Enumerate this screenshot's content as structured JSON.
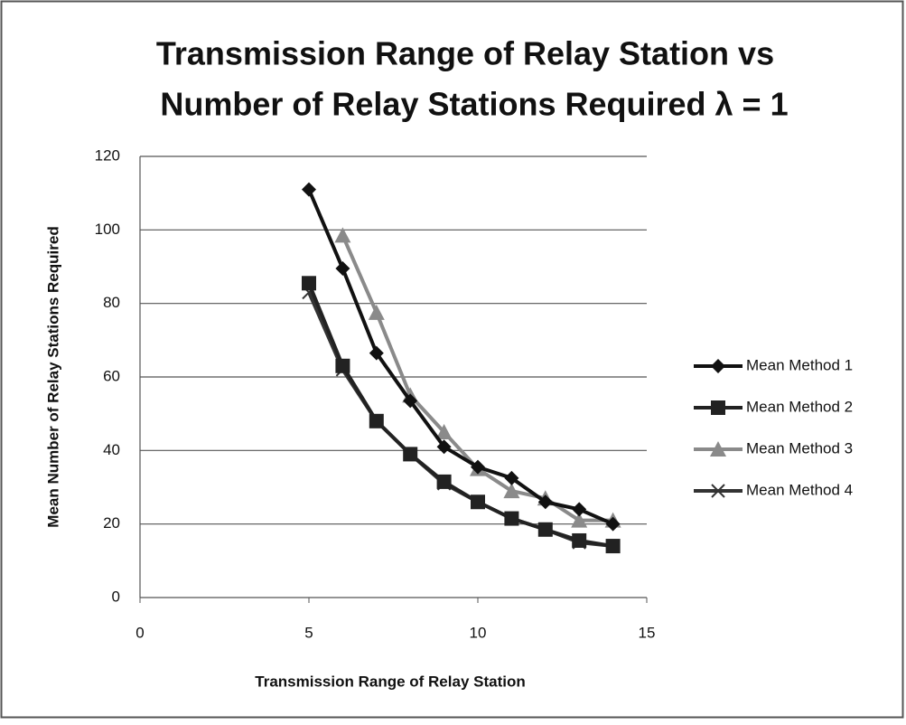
{
  "chart_data": {
    "type": "line",
    "title": [
      "Transmission Range of Relay Station vs",
      "Number of Relay Stations Required λ = 1"
    ],
    "x_label": "Transmission Range of Relay Station",
    "y_label": "Mean Number of Relay Stations Required",
    "x": [
      5,
      6,
      7,
      8,
      9,
      10,
      11,
      12,
      13,
      14
    ],
    "series": [
      {
        "name": "Mean Method 1",
        "color": "#111111",
        "marker": "diamond",
        "values": [
          111,
          89.5,
          66.5,
          53.5,
          41,
          35.5,
          32.5,
          26,
          24,
          20
        ]
      },
      {
        "name": "Mean Method 2",
        "color": "#222222",
        "marker": "square",
        "values": [
          85.5,
          63,
          48,
          39,
          31.5,
          26,
          21.5,
          18.5,
          15.5,
          14
        ]
      },
      {
        "name": "Mean Method 3",
        "color": "#8a8a8a",
        "marker": "triangle",
        "values": [
          null,
          98.5,
          77.5,
          55,
          45,
          35,
          29,
          27,
          21,
          21
        ]
      },
      {
        "name": "Mean Method 4",
        "color": "#333333",
        "marker": "x",
        "values": [
          83,
          62,
          48,
          39,
          31,
          26,
          21.5,
          18.5,
          15,
          14
        ]
      }
    ],
    "xlim": [
      0,
      15
    ],
    "xticks": [
      0,
      5,
      10,
      15
    ],
    "ylim": [
      0,
      120
    ],
    "yticks": [
      0,
      20,
      40,
      60,
      80,
      100,
      120
    ],
    "grid": true,
    "legend": "right"
  }
}
